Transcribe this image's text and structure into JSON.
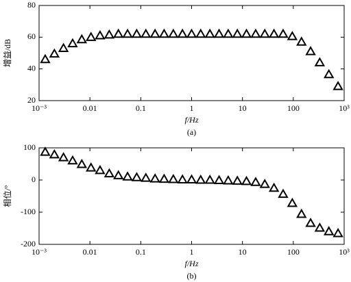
{
  "chart_data": [
    {
      "type": "scatter",
      "ylabel": "增益/dB",
      "xlabel": "f/Hz",
      "caption": "(a)",
      "xlog": true,
      "xlim": [
        0.001,
        1000
      ],
      "xticks": [
        {
          "value": 0.001,
          "label": "10⁻³"
        },
        0.01,
        0.1,
        1,
        10,
        100,
        {
          "value": 1000,
          "label": "10³"
        }
      ],
      "ylim": [
        20,
        80
      ],
      "yticks": [
        20,
        40,
        60,
        80
      ],
      "color": "#000000",
      "marker": "triangle",
      "x": [
        0.00132,
        0.002,
        0.00302,
        0.00457,
        0.00692,
        0.0105,
        0.0158,
        0.024,
        0.0363,
        0.055,
        0.0832,
        0.126,
        0.191,
        0.288,
        0.437,
        0.661,
        1,
        1.51,
        2.29,
        3.47,
        5.25,
        7.94,
        12,
        18.2,
        27.5,
        41.7,
        63.1,
        95.5,
        145,
        219,
        331,
        501,
        759
      ],
      "values": [
        46,
        49.5,
        53,
        56,
        58.5,
        60,
        61,
        61.5,
        62,
        62,
        62,
        62,
        62,
        62,
        62,
        62,
        62,
        62,
        62,
        62,
        62,
        62,
        62,
        62,
        62,
        62,
        62,
        60.5,
        57,
        51,
        44,
        36.5,
        29
      ]
    },
    {
      "type": "scatter",
      "ylabel": "相位/°",
      "xlabel": "f/Hz",
      "caption": "(b)",
      "xlog": true,
      "xlim": [
        0.001,
        1000
      ],
      "xticks": [
        {
          "value": 0.001,
          "label": "10⁻³"
        },
        0.01,
        0.1,
        1,
        10,
        100,
        {
          "value": 1000,
          "label": "10³"
        }
      ],
      "ylim": [
        -200,
        100
      ],
      "yticks": [
        -200,
        -100,
        0,
        100
      ],
      "color": "#000000",
      "marker": "triangle",
      "x": [
        0.00132,
        0.002,
        0.00302,
        0.00457,
        0.00692,
        0.0105,
        0.0158,
        0.024,
        0.0363,
        0.055,
        0.0832,
        0.126,
        0.191,
        0.288,
        0.437,
        0.661,
        1,
        1.51,
        2.29,
        3.47,
        5.25,
        7.94,
        12,
        18.2,
        27.5,
        41.7,
        63.1,
        95.5,
        145,
        219,
        331,
        501,
        759
      ],
      "values": [
        87,
        79,
        70,
        60,
        49,
        38,
        30,
        20,
        14,
        10,
        8,
        6,
        4,
        3,
        2,
        1,
        1,
        0,
        0,
        -1,
        -2,
        -3,
        -4,
        -7,
        -13,
        -25,
        -44,
        -72,
        -106,
        -134,
        -149,
        -160,
        -166
      ]
    }
  ]
}
